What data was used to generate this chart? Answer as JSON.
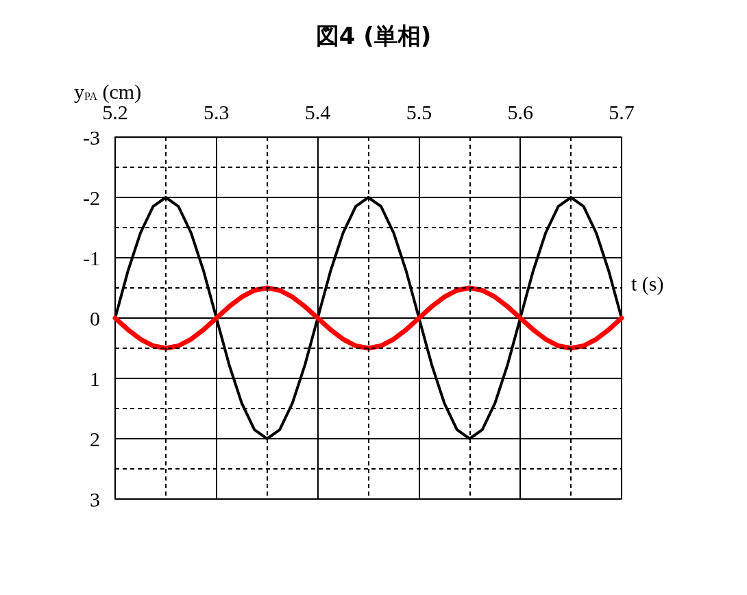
{
  "chart_data": {
    "type": "line",
    "title": "図4 (単相)",
    "xlabel": "t (s)",
    "ylabel": "y$_{PA}$ (cm)",
    "x": [
      5.2,
      5.2125,
      5.225,
      5.2375,
      5.25,
      5.2625,
      5.275,
      5.2875,
      5.3,
      5.3125,
      5.325,
      5.3375,
      5.35,
      5.3625,
      5.375,
      5.3875,
      5.4,
      5.4125,
      5.425,
      5.4375,
      5.45,
      5.4625,
      5.475,
      5.4875,
      5.5,
      5.5125,
      5.525,
      5.5375,
      5.55,
      5.5625,
      5.575,
      5.5875,
      5.6,
      5.6125,
      5.625,
      5.6375,
      5.65,
      5.6625,
      5.675,
      5.6875,
      5.7
    ],
    "series": [
      {
        "color": "#000000",
        "values": [
          0,
          -0.77,
          -1.41,
          -1.85,
          -2,
          -1.85,
          -1.41,
          -0.77,
          0,
          0.77,
          1.41,
          1.85,
          2,
          1.85,
          1.41,
          0.77,
          0,
          -0.77,
          -1.41,
          -1.85,
          -2,
          -1.85,
          -1.41,
          -0.77,
          0,
          0.77,
          1.41,
          1.85,
          2,
          1.85,
          1.41,
          0.77,
          0,
          -0.77,
          -1.41,
          -1.85,
          -2,
          -1.85,
          -1.41,
          -0.77,
          0
        ]
      },
      {
        "color": "#ff0000",
        "values": [
          0,
          0.19,
          0.35,
          0.46,
          0.5,
          0.46,
          0.35,
          0.19,
          0,
          -0.19,
          -0.35,
          -0.46,
          -0.5,
          -0.46,
          -0.35,
          -0.19,
          0,
          0.19,
          0.35,
          0.46,
          0.5,
          0.46,
          0.35,
          0.19,
          0,
          -0.19,
          -0.35,
          -0.46,
          -0.5,
          -0.46,
          -0.35,
          -0.19,
          0,
          0.19,
          0.35,
          0.46,
          0.5,
          0.46,
          0.35,
          0.19,
          0
        ]
      }
    ],
    "xlim": [
      5.2,
      5.7
    ],
    "xticks": [
      5.2,
      5.3,
      5.4,
      5.5,
      5.6,
      5.7
    ],
    "ylim": [
      3,
      -3
    ],
    "yticks": [
      -3,
      -2,
      -1,
      0,
      1,
      2,
      3
    ],
    "grid": true,
    "marker": "none",
    "line_style": "solid"
  }
}
